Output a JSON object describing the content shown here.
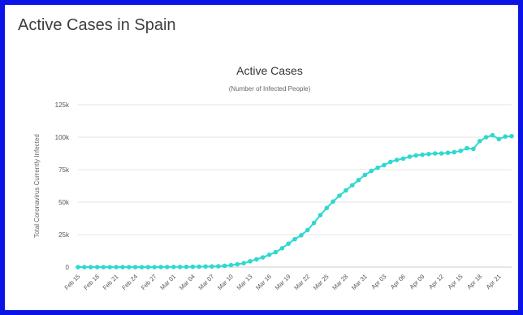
{
  "card": {
    "title": "Active Cases in Spain"
  },
  "colors": {
    "frame": "#0a14e6",
    "series": "#2fd8d0",
    "grid": "#e6e6e6"
  },
  "chart_data": {
    "type": "line",
    "title": "Active Cases",
    "subtitle": "(Number of Infected People)",
    "xlabel": "",
    "ylabel": "Total Coronavirus Currently Infected",
    "ylim": [
      0,
      125000
    ],
    "yticks": [
      0,
      25000,
      50000,
      75000,
      100000,
      125000
    ],
    "ytick_labels": [
      "0",
      "25k",
      "50k",
      "75k",
      "100k",
      "125k"
    ],
    "grid": true,
    "legend": "none",
    "x_tick_labels": [
      "Feb 15",
      "Feb 18",
      "Feb 21",
      "Feb 24",
      "Feb 27",
      "Mar 01",
      "Mar 04",
      "Mar 07",
      "Mar 10",
      "Mar 13",
      "Mar 16",
      "Mar 19",
      "Mar 22",
      "Mar 25",
      "Mar 28",
      "Mar 31",
      "Apr 03",
      "Apr 06",
      "Apr 09",
      "Apr 12",
      "Apr 15",
      "Apr 18",
      "Apr 21"
    ],
    "x": [
      "Feb 15",
      "Feb 16",
      "Feb 17",
      "Feb 18",
      "Feb 19",
      "Feb 20",
      "Feb 21",
      "Feb 22",
      "Feb 23",
      "Feb 24",
      "Feb 25",
      "Feb 26",
      "Feb 27",
      "Feb 28",
      "Feb 29",
      "Mar 01",
      "Mar 02",
      "Mar 03",
      "Mar 04",
      "Mar 05",
      "Mar 06",
      "Mar 07",
      "Mar 08",
      "Mar 09",
      "Mar 10",
      "Mar 11",
      "Mar 12",
      "Mar 13",
      "Mar 14",
      "Mar 15",
      "Mar 16",
      "Mar 17",
      "Mar 18",
      "Mar 19",
      "Mar 20",
      "Mar 21",
      "Mar 22",
      "Mar 23",
      "Mar 24",
      "Mar 25",
      "Mar 26",
      "Mar 27",
      "Mar 28",
      "Mar 29",
      "Mar 30",
      "Mar 31",
      "Apr 01",
      "Apr 02",
      "Apr 03",
      "Apr 04",
      "Apr 05",
      "Apr 06",
      "Apr 07",
      "Apr 08",
      "Apr 09",
      "Apr 10",
      "Apr 11",
      "Apr 12",
      "Apr 13",
      "Apr 14",
      "Apr 15",
      "Apr 16",
      "Apr 17",
      "Apr 18",
      "Apr 19",
      "Apr 20",
      "Apr 21",
      "Apr 22",
      "Apr 23"
    ],
    "series": [
      {
        "values": [
          2,
          2,
          2,
          2,
          2,
          2,
          2,
          2,
          2,
          2,
          2,
          15,
          30,
          45,
          70,
          100,
          140,
          180,
          240,
          320,
          430,
          530,
          650,
          1000,
          1500,
          2200,
          3000,
          4500,
          6000,
          7500,
          9500,
          11500,
          14500,
          18000,
          21500,
          24500,
          28500,
          34000,
          40000,
          45500,
          50500,
          55000,
          59000,
          63000,
          67000,
          71000,
          74000,
          76500,
          78500,
          81000,
          82500,
          83500,
          85000,
          86000,
          86500,
          87000,
          87500,
          87500,
          88000,
          88500,
          89500,
          91500,
          91000,
          97000,
          100000,
          101500,
          98500,
          100500,
          100800
        ]
      }
    ]
  }
}
